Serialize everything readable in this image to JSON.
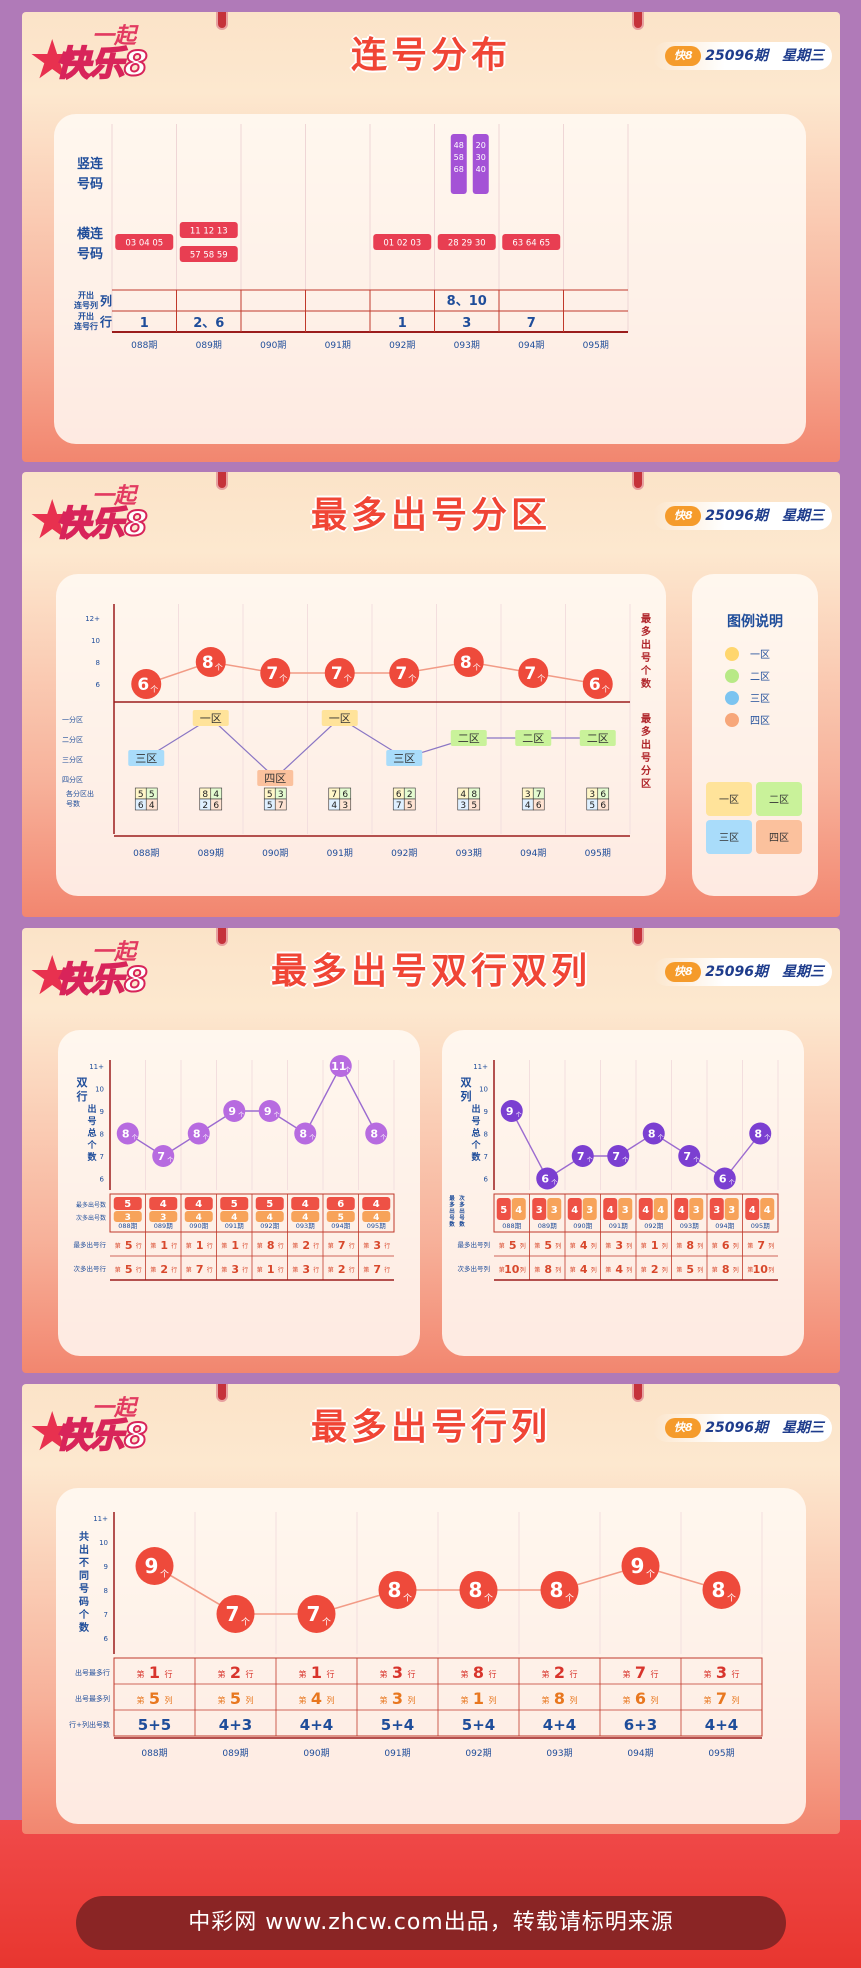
{
  "issue_text": "25096期　星期三",
  "logo": {
    "top": "一起",
    "main": "快乐8"
  },
  "footer": "中彩网 www.zhcw.com出品，转载请标明来源",
  "periods": [
    "088期",
    "089期",
    "090期",
    "091期",
    "092期",
    "093期",
    "094期",
    "095期"
  ],
  "colors": {
    "red": "#e8453c",
    "orange": "#f6743f",
    "purple": "#a452d6",
    "blue": "#1f4d9a"
  },
  "s1": {
    "title": "连号分布",
    "row_labels": [
      "竖连\n号码",
      "横连\n号码",
      "开出\n连号列",
      "开出\n连号行"
    ],
    "vertical": [
      {
        "period": 5,
        "col": 0,
        "values": [
          "48",
          "58",
          "68"
        ]
      },
      {
        "period": 5,
        "col": 1,
        "values": [
          "20",
          "30",
          "40"
        ]
      }
    ],
    "horizontal": [
      {
        "period": 0,
        "row": 0,
        "text": "03 04 05"
      },
      {
        "period": 1,
        "row": -1,
        "text": "11 12 13"
      },
      {
        "period": 1,
        "row": 1,
        "text": "57 58 59"
      },
      {
        "period": 4,
        "row": 0,
        "text": "01 02 03"
      },
      {
        "period": 5,
        "row": 0,
        "text": "28 29 30"
      },
      {
        "period": 6,
        "row": 0,
        "text": "63 64 65"
      }
    ],
    "cols": [
      "",
      "",
      "",
      "",
      "",
      "8、10",
      "",
      ""
    ],
    "rows": [
      "1",
      "2、6",
      "",
      "",
      "1",
      "3",
      "7",
      ""
    ]
  },
  "s2": {
    "title": "最多出号分区",
    "count_ylabels": [
      "12+",
      "10",
      "8",
      "6"
    ],
    "zone_ylabels": [
      "一分区",
      "二分区",
      "三分区",
      "四分区"
    ],
    "foot_label": "各分区出号数",
    "right_label1": "最多出号个数",
    "right_label2": "最多出号分区",
    "counts": [
      6,
      8,
      7,
      7,
      7,
      8,
      7,
      6
    ],
    "zones": [
      [
        "三区"
      ],
      [
        "一区"
      ],
      [
        "四区"
      ],
      [
        "一区"
      ],
      [
        "三区"
      ],
      [
        "二区"
      ],
      [
        "二区"
      ],
      [
        "二区"
      ]
    ],
    "zone_levels": [
      3,
      1,
      4,
      1,
      3,
      2,
      2,
      2
    ],
    "grids": [
      [
        "5",
        "5",
        "6",
        "4"
      ],
      [
        "8",
        "4",
        "2",
        "6"
      ],
      [
        "5",
        "3",
        "5",
        "7"
      ],
      [
        "7",
        "6",
        "4",
        "3"
      ],
      [
        "6",
        "2",
        "7",
        "5"
      ],
      [
        "4",
        "8",
        "3",
        "5"
      ],
      [
        "3",
        "7",
        "4",
        "6"
      ],
      [
        "3",
        "6",
        "5",
        "6"
      ]
    ],
    "legend": {
      "title": "图例说明",
      "items": [
        {
          "label": "一区",
          "color": "#ffd66e"
        },
        {
          "label": "二区",
          "color": "#b8e986"
        },
        {
          "label": "三区",
          "color": "#7cc4f0"
        },
        {
          "label": "四区",
          "color": "#f7a77a"
        }
      ],
      "quad": [
        "一区",
        "二区",
        "三区",
        "四区"
      ]
    }
  },
  "s3": {
    "title": "最多出号双行双列",
    "left": {
      "ylabel": "双行出号总个数",
      "yticks": [
        "11+",
        "10",
        "9",
        "8",
        "7",
        "6"
      ],
      "values": [
        8,
        7,
        8,
        9,
        9,
        8,
        11,
        8
      ],
      "row_a_label": "最多出号数",
      "row_b_label": "次多出号数",
      "a": [
        "5",
        "4",
        "4",
        "5",
        "5",
        "4",
        "6",
        "4"
      ],
      "b": [
        "3",
        "3",
        "4",
        "4",
        "4",
        "4",
        "5",
        "4"
      ],
      "c_label": "最多出号行",
      "d_label": "次多出号行",
      "c": [
        "第5行",
        "第1行",
        "第1行",
        "第1行",
        "第8行",
        "第2行",
        "第7行",
        "第3行"
      ],
      "d": [
        "第5行",
        "第2行",
        "第7行",
        "第3行",
        "第1行",
        "第3行",
        "第2行",
        "第7行"
      ]
    },
    "right": {
      "ylabel": "双列出号总个数",
      "yticks": [
        "11+",
        "10",
        "9",
        "8",
        "7",
        "6"
      ],
      "values": [
        9,
        6,
        7,
        7,
        8,
        7,
        6,
        8
      ],
      "row_a_label": "最多出号数",
      "row_b_label": "次多出号数",
      "pairs": [
        [
          "5",
          "4"
        ],
        [
          "3",
          "3"
        ],
        [
          "4",
          "3"
        ],
        [
          "4",
          "3"
        ],
        [
          "4",
          "4"
        ],
        [
          "4",
          "3"
        ],
        [
          "3",
          "3"
        ],
        [
          "4",
          "4"
        ]
      ],
      "c_label": "最多出号列",
      "d_label": "次多出号列",
      "c": [
        "第5列",
        "第5列",
        "第4列",
        "第3列",
        "第1列",
        "第8列",
        "第6列",
        "第7列"
      ],
      "d": [
        "第10列",
        "第8列",
        "第4列",
        "第4列",
        "第2列",
        "第5列",
        "第8列",
        "第10列"
      ]
    }
  },
  "s4": {
    "title": "最多出号行列",
    "ylabel": "共出不同号码个数",
    "yticks": [
      "11+",
      "10",
      "9",
      "8",
      "7",
      "6"
    ],
    "values": [
      9,
      7,
      7,
      8,
      8,
      8,
      9,
      8
    ],
    "row1_label": "出号最多行",
    "row2_label": "出号最多列",
    "row3_label": "行+列出号数",
    "rows_best": [
      "第1行",
      "第2行",
      "第1行",
      "第3行",
      "第8行",
      "第2行",
      "第7行",
      "第3行"
    ],
    "cols_best": [
      "第5列",
      "第5列",
      "第4列",
      "第3列",
      "第1列",
      "第8列",
      "第6列",
      "第7列"
    ],
    "sums": [
      "5+5",
      "4+3",
      "4+4",
      "5+4",
      "5+4",
      "4+4",
      "6+3",
      "4+4"
    ]
  }
}
